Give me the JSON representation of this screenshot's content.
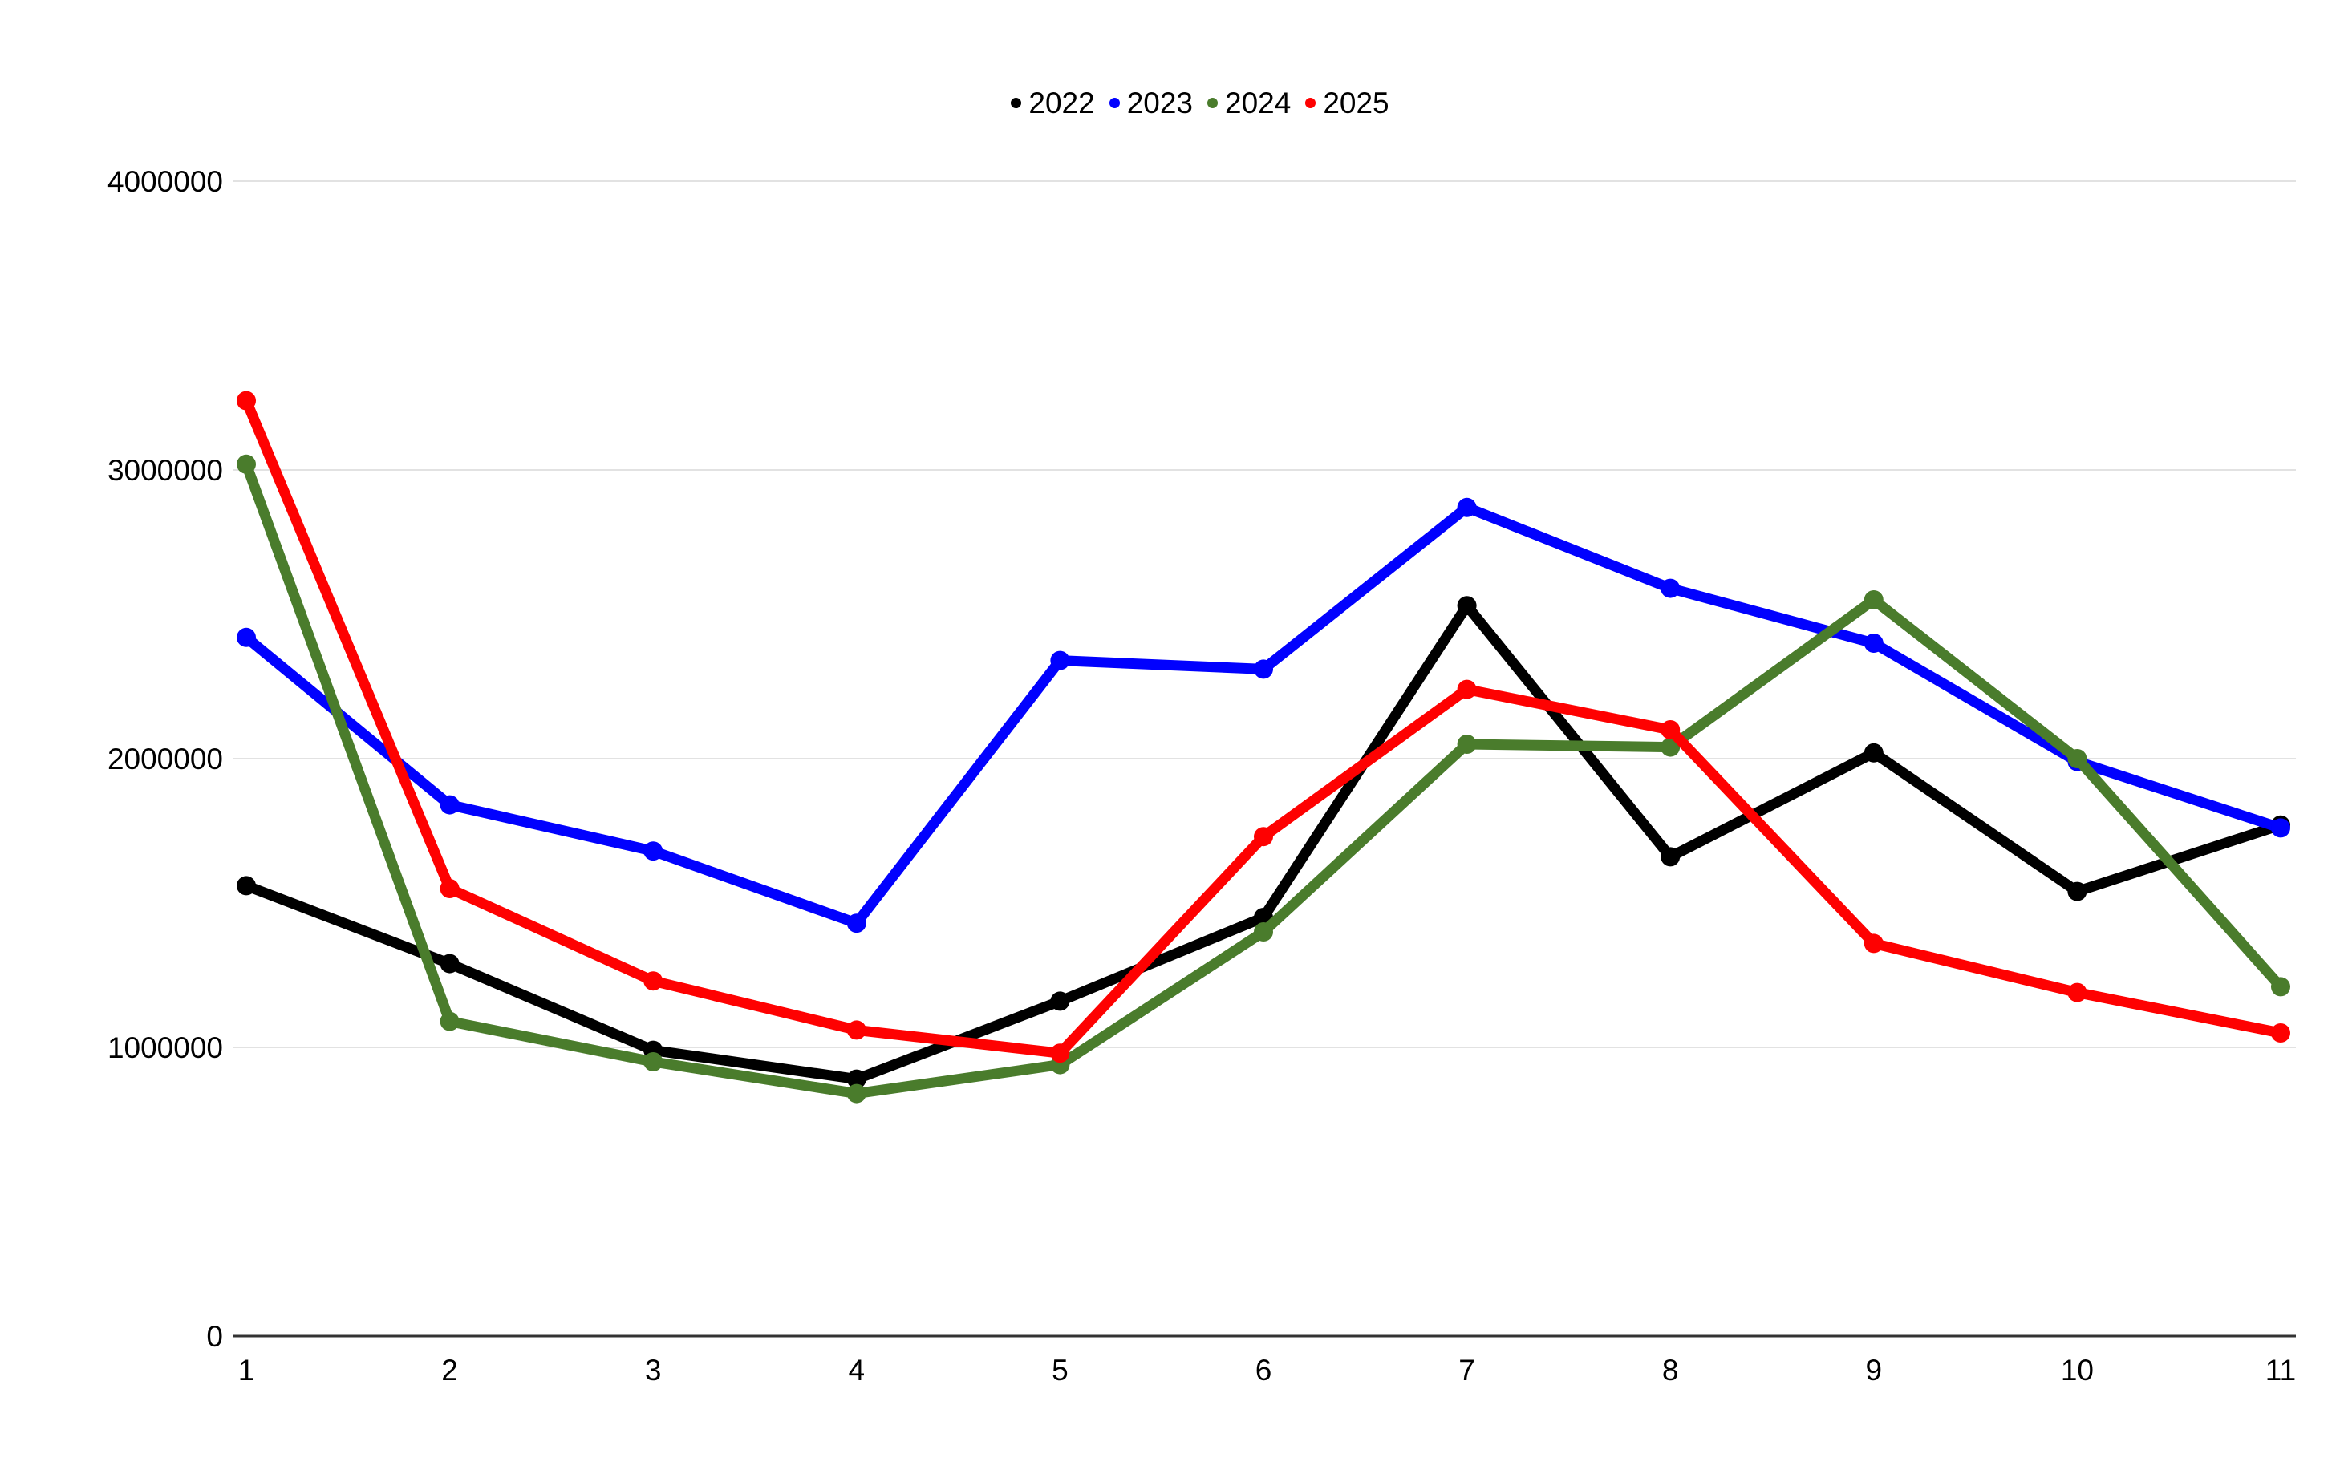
{
  "chart_data": {
    "type": "line",
    "x": [
      "1",
      "2",
      "3",
      "4",
      "5",
      "6",
      "7",
      "8",
      "9",
      "10",
      "11"
    ],
    "ylim": [
      0,
      4000000
    ],
    "yticks": [
      0,
      1000000,
      2000000,
      3000000,
      4000000
    ],
    "grid": true,
    "legend_position": "top-center",
    "title": "",
    "xlabel": "",
    "ylabel": "",
    "series": [
      {
        "name": "2022",
        "color": "#000000",
        "values": [
          1560000,
          1290000,
          990000,
          890000,
          1160000,
          1450000,
          2530000,
          1660000,
          2020000,
          1540000,
          1770000
        ]
      },
      {
        "name": "2023",
        "color": "#0101fe",
        "values": [
          2420000,
          1840000,
          1680000,
          1430000,
          2340000,
          2310000,
          2870000,
          2590000,
          2400000,
          1990000,
          1760000
        ]
      },
      {
        "name": "2024",
        "color": "#4a7c2c",
        "values": [
          3020000,
          1090000,
          950000,
          840000,
          940000,
          1400000,
          2050000,
          2040000,
          2550000,
          2000000,
          1210000
        ]
      },
      {
        "name": "2025",
        "color": "#fe0101",
        "values": [
          3240000,
          1550000,
          1230000,
          1060000,
          980000,
          1730000,
          2240000,
          2100000,
          1360000,
          1190000,
          1050000
        ]
      }
    ]
  }
}
